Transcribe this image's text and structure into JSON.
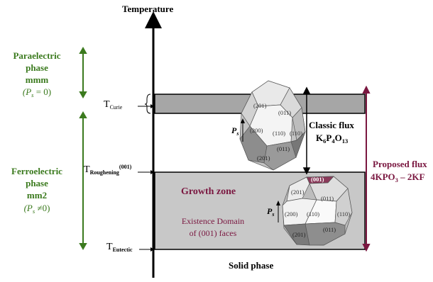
{
  "axis_title": "Temperature",
  "para": {
    "line1": "Paraelectric",
    "line2": "phase",
    "line3": "mmm",
    "ps_symbol": "P",
    "ps_sub": "s",
    "ps_value": " = 0)"
  },
  "ferro": {
    "line1": "Ferroelectric",
    "line2": "phase",
    "line3": "mm2",
    "ps_symbol": "P",
    "ps_sub": "s",
    "ps_value": " ≠0)"
  },
  "t_curie": {
    "main": "T",
    "sub": "Curie"
  },
  "t_roughening": {
    "main": "T",
    "sub": "Roughening",
    "sup": "(001)"
  },
  "t_eutectic": {
    "main": "T",
    "sub": "Eutectic"
  },
  "classic_flux": {
    "line1": "Classic flux",
    "formula_parts": [
      "K",
      "6",
      "P",
      "4",
      "O",
      "13"
    ]
  },
  "proposed_flux": {
    "line1": "Proposed flux",
    "formula_parts": [
      "4KPO",
      "3",
      " – 2KF"
    ]
  },
  "growth_zone": "Growth zone",
  "existence_domain": {
    "line1": "Existence Domain",
    "line2": "of (001) faces"
  },
  "solid_phase": "Solid phase",
  "crystal_top": {
    "ps_symbol": "P",
    "ps_sub": "s",
    "faces": [
      "(201)",
      "(011)",
      "(200)",
      "(110)",
      "(110)",
      "(011)",
      "(201)"
    ]
  },
  "crystal_bottom": {
    "ps_symbol": "P",
    "ps_sub": "s",
    "faces": [
      "(001)",
      "(201)",
      "(011)",
      "(200)",
      "(110)",
      "(110)",
      "(011)",
      "(201)"
    ]
  },
  "colors": {
    "green": "#3b7a1e",
    "maroon": "#7a1740",
    "band": "#a6a6a6",
    "growth_zone": "#c8c8c8"
  }
}
